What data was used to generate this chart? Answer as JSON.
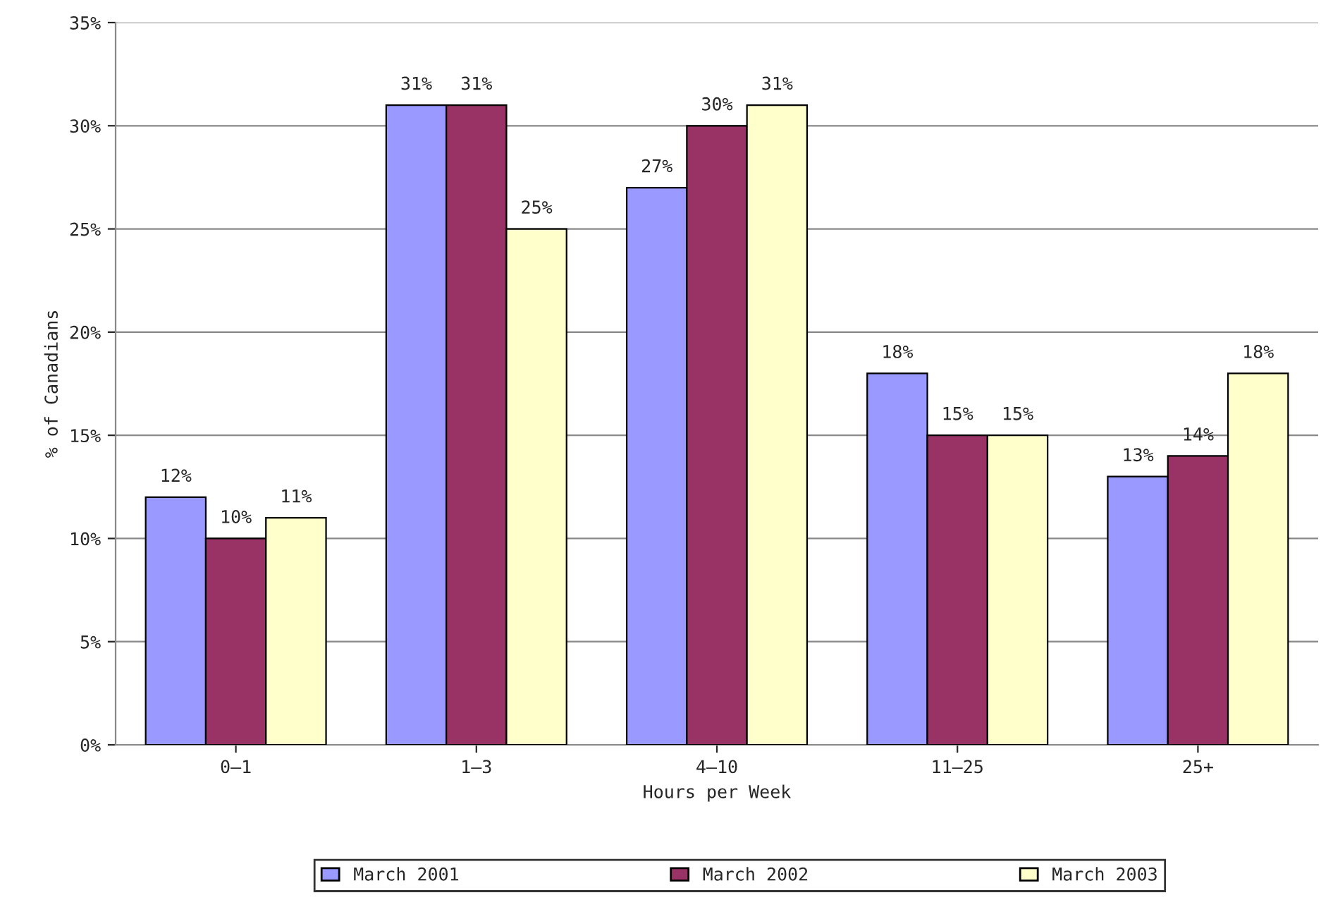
{
  "chart_data": {
    "type": "bar",
    "xlabel": "Hours per Week",
    "ylabel": "% of Canadians",
    "categories": [
      "0–1",
      "1–3",
      "4–10",
      "11–25",
      "25+"
    ],
    "series": [
      {
        "name": "March 2001",
        "color": "#9999ff",
        "values": [
          12,
          31,
          27,
          18,
          13
        ],
        "value_labels": [
          "12%",
          "31%",
          "27%",
          "18%",
          "13%"
        ]
      },
      {
        "name": "March 2002",
        "color": "#993366",
        "values": [
          10,
          31,
          30,
          15,
          14
        ],
        "value_labels": [
          "10%",
          "31%",
          "30%",
          "15%",
          "14%"
        ]
      },
      {
        "name": "March 2003",
        "color": "#ffffcc",
        "values": [
          11,
          25,
          31,
          15,
          18
        ],
        "value_labels": [
          "11%",
          "25%",
          "31%",
          "15%",
          "18%"
        ]
      }
    ],
    "ylim": [
      0,
      35
    ],
    "yticks": [
      {
        "value": 0,
        "label": "0%"
      },
      {
        "value": 5,
        "label": "5%"
      },
      {
        "value": 10,
        "label": "10%"
      },
      {
        "value": 15,
        "label": "15%"
      },
      {
        "value": 20,
        "label": "20%"
      },
      {
        "value": 25,
        "label": "25%"
      },
      {
        "value": 30,
        "label": "30%"
      },
      {
        "value": 35,
        "label": "35%"
      }
    ],
    "grid": "y",
    "legend": "bottom"
  }
}
